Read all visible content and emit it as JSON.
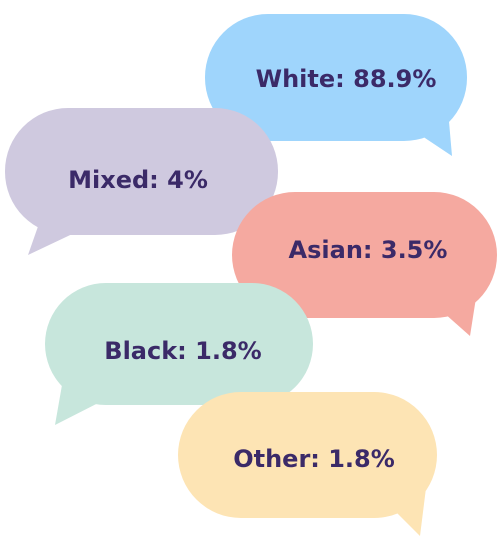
{
  "items": [
    {
      "label": "White: 88.9%"
    },
    {
      "label": "Mixed: 4%"
    },
    {
      "label": "Asian: 3.5%"
    },
    {
      "label": "Black: 1.8%"
    },
    {
      "label": "Other: 1.8%"
    }
  ]
}
